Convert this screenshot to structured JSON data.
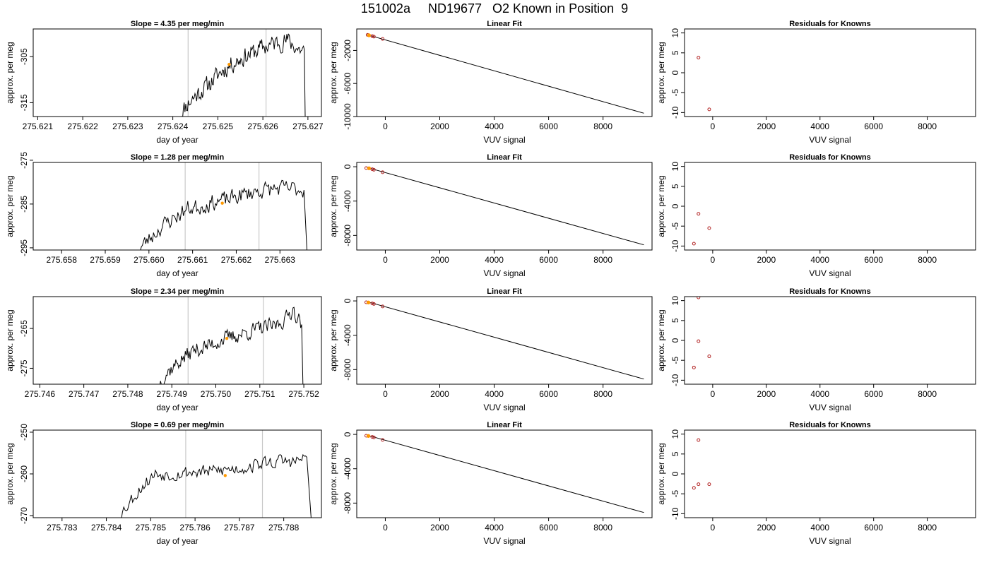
{
  "page_title": "151002a     ND19677   O2 Known in Position  9",
  "colors": {
    "line": "#000000",
    "vline": "#c8c8c8",
    "highlight": "#ff9900",
    "point": "#b22222"
  },
  "chart_data": [
    {
      "row": 1,
      "trace": {
        "type": "line",
        "title": "Slope =  4.35  per meg/min",
        "xlabel": "day of year",
        "ylabel": "approx. per meg",
        "xlim": [
          275.6209,
          275.6273
        ],
        "ylim": [
          -318,
          -299
        ],
        "xticks": [
          275.621,
          275.622,
          275.623,
          275.624,
          275.625,
          275.626,
          275.627
        ],
        "xtick_labels": [
          "275.621",
          "275.622",
          "275.623",
          "275.624",
          "275.625",
          "275.626",
          "275.627"
        ],
        "yticks": [
          -305,
          -315
        ],
        "ytick_labels": [
          "-305",
          "-315"
        ],
        "vlines": [
          275.62434,
          275.62607
        ],
        "highlight": [
          275.62525,
          -306.7
        ],
        "start": 275.62414,
        "end": 275.62692,
        "anchors": [
          [
            275.62414,
            -318
          ],
          [
            275.6243,
            -315.5
          ],
          [
            275.6245,
            -313.5
          ],
          [
            275.6248,
            -311
          ],
          [
            275.6251,
            -308
          ],
          [
            275.6254,
            -306
          ],
          [
            275.6257,
            -304.5
          ],
          [
            275.626,
            -303
          ],
          [
            275.6263,
            -302
          ],
          [
            275.62655,
            -301.5
          ],
          [
            275.6268,
            -303.5
          ],
          [
            275.62692,
            -303.5
          ]
        ],
        "noise": 1.8,
        "seed": 11,
        "drop": [
          275.62694,
          -318
        ]
      },
      "fit": {
        "type": "scatter",
        "title": "Linear Fit",
        "xlabel": "VUV signal",
        "ylabel": "approx. per meg",
        "xlim": [
          -1050,
          9800
        ],
        "ylim": [
          -10000,
          600
        ],
        "xticks": [
          0,
          2000,
          4000,
          6000,
          8000
        ],
        "xtick_labels": [
          "0",
          "2000",
          "4000",
          "6000",
          "8000"
        ],
        "yticks": [
          -2000,
          -6000,
          -10000
        ],
        "ytick_labels": [
          "-2000",
          "-6000",
          "-10000"
        ],
        "line": [
          [
            -680,
            -90
          ],
          [
            9500,
            -9600
          ]
        ],
        "points": [
          [
            -650,
            -120
          ],
          [
            -480,
            -270
          ],
          [
            -420,
            -330
          ],
          [
            -100,
            -610
          ]
        ],
        "highlight": [
          -600,
          -170
        ]
      },
      "residuals": {
        "type": "scatter",
        "title": "Residuals for Knowns",
        "xlabel": "VUV signal",
        "ylabel": "approx. per meg",
        "xlim": [
          -1050,
          9800
        ],
        "ylim": [
          -11,
          11
        ],
        "xticks": [
          0,
          2000,
          4000,
          6000,
          8000
        ],
        "xtick_labels": [
          "0",
          "2000",
          "4000",
          "6000",
          "8000"
        ],
        "yticks": [
          10,
          5,
          0,
          -5,
          -10
        ],
        "ytick_labels": [
          "10",
          "5",
          "0",
          "-5",
          "-10"
        ],
        "points": [
          [
            -530,
            3.8
          ],
          [
            -130,
            -9.2
          ]
        ]
      }
    },
    {
      "row": 2,
      "trace": {
        "type": "line",
        "title": "Slope =  1.28  per meg/min",
        "xlabel": "day of year",
        "ylabel": "approx. per meg",
        "xlim": [
          275.65735,
          275.66395
        ],
        "ylim": [
          -295.5,
          -275.5
        ],
        "xticks": [
          275.658,
          275.659,
          275.66,
          275.661,
          275.662,
          275.663
        ],
        "xtick_labels": [
          "275.658",
          "275.659",
          "275.660",
          "275.661",
          "275.662",
          "275.663"
        ],
        "yticks": [
          -275,
          -285,
          -295
        ],
        "ytick_labels": [
          "-275",
          "-285",
          "-295"
        ],
        "vlines": [
          275.66083,
          275.66252
        ],
        "highlight": [
          275.66168,
          -284.8
        ],
        "start": 275.65975,
        "end": 275.66355,
        "anchors": [
          [
            275.65975,
            -295.5
          ],
          [
            275.66,
            -293
          ],
          [
            275.6603,
            -290
          ],
          [
            275.6606,
            -288
          ],
          [
            275.6609,
            -286
          ],
          [
            275.6612,
            -285.5
          ],
          [
            275.6615,
            -284.5
          ],
          [
            275.6618,
            -284
          ],
          [
            275.6621,
            -283
          ],
          [
            275.6625,
            -282
          ],
          [
            275.6629,
            -281.5
          ],
          [
            275.6633,
            -281.5
          ],
          [
            275.66355,
            -281.8
          ]
        ],
        "noise": 1.7,
        "seed": 23,
        "drop": [
          275.66362,
          -296
        ]
      },
      "fit": {
        "type": "scatter",
        "title": "Linear Fit",
        "xlabel": "VUV signal",
        "ylabel": "approx. per meg",
        "xlim": [
          -1050,
          9800
        ],
        "ylim": [
          -9700,
          500
        ],
        "xticks": [
          0,
          2000,
          4000,
          6000,
          8000
        ],
        "xtick_labels": [
          "0",
          "2000",
          "4000",
          "6000",
          "8000"
        ],
        "yticks": [
          0,
          -4000,
          -8000
        ],
        "ytick_labels": [
          "0",
          "-4000",
          "-8000"
        ],
        "line": [
          [
            -680,
            -80
          ],
          [
            9500,
            -9100
          ]
        ],
        "points": [
          [
            -700,
            -160
          ],
          [
            -480,
            -290
          ],
          [
            -420,
            -350
          ],
          [
            -100,
            -640
          ]
        ],
        "highlight": [
          -600,
          -180
        ]
      },
      "residuals": {
        "type": "scatter",
        "title": "Residuals for Knowns",
        "xlabel": "VUV signal",
        "ylabel": "approx. per meg",
        "xlim": [
          -1050,
          9800
        ],
        "ylim": [
          -11,
          11
        ],
        "xticks": [
          0,
          2000,
          4000,
          6000,
          8000
        ],
        "xtick_labels": [
          "0",
          "2000",
          "4000",
          "6000",
          "8000"
        ],
        "yticks": [
          10,
          5,
          0,
          -5,
          -10
        ],
        "ytick_labels": [
          "10",
          "5",
          "0",
          "-5",
          "-10"
        ],
        "points": [
          [
            -700,
            -9.4
          ],
          [
            -530,
            -1.9
          ],
          [
            -130,
            -5.5
          ]
        ]
      }
    },
    {
      "row": 3,
      "trace": {
        "type": "line",
        "title": "Slope =  2.34  per meg/min",
        "xlabel": "day of year",
        "ylabel": "approx. per meg",
        "xlim": [
          275.74585,
          275.7524
        ],
        "ylim": [
          -279,
          -257
        ],
        "xticks": [
          275.746,
          275.747,
          275.748,
          275.749,
          275.75,
          275.751,
          275.752
        ],
        "xtick_labels": [
          "275.746",
          "275.747",
          "275.748",
          "275.749",
          "275.750",
          "275.751",
          "275.752"
        ],
        "yticks": [
          -265,
          -275
        ],
        "ytick_labels": [
          "-265",
          "-275"
        ],
        "vlines": [
          275.74937,
          275.75108
        ],
        "highlight": [
          275.75025,
          -267.5
        ],
        "start": 275.7487,
        "end": 275.75195,
        "anchors": [
          [
            275.7487,
            -279
          ],
          [
            275.7489,
            -276
          ],
          [
            275.7492,
            -273
          ],
          [
            275.7495,
            -270.5
          ],
          [
            275.7498,
            -269.5
          ],
          [
            275.7501,
            -268
          ],
          [
            275.7504,
            -267
          ],
          [
            275.7507,
            -266
          ],
          [
            275.751,
            -265
          ],
          [
            275.7513,
            -264.5
          ],
          [
            275.7516,
            -262.5
          ],
          [
            275.75175,
            -260
          ],
          [
            275.75195,
            -264
          ]
        ],
        "noise": 1.8,
        "seed": 37,
        "drop": [
          275.75198,
          -279
        ]
      },
      "fit": {
        "type": "scatter",
        "title": "Linear Fit",
        "xlabel": "VUV signal",
        "ylabel": "approx. per meg",
        "xlim": [
          -1050,
          9800
        ],
        "ylim": [
          -9700,
          500
        ],
        "xticks": [
          0,
          2000,
          4000,
          6000,
          8000
        ],
        "xtick_labels": [
          "0",
          "2000",
          "4000",
          "6000",
          "8000"
        ],
        "yticks": [
          0,
          -4000,
          -8000
        ],
        "ytick_labels": [
          "0",
          "-4000",
          "-8000"
        ],
        "line": [
          [
            -680,
            -80
          ],
          [
            9500,
            -9100
          ]
        ],
        "points": [
          [
            -700,
            -160
          ],
          [
            -480,
            -290
          ],
          [
            -420,
            -350
          ],
          [
            -100,
            -640
          ]
        ],
        "highlight": [
          -620,
          -180
        ]
      },
      "residuals": {
        "type": "scatter",
        "title": "Residuals for Knowns",
        "xlabel": "VUV signal",
        "ylabel": "approx. per meg",
        "xlim": [
          -1050,
          9800
        ],
        "ylim": [
          -11,
          11
        ],
        "xticks": [
          0,
          2000,
          4000,
          6000,
          8000
        ],
        "xtick_labels": [
          "0",
          "2000",
          "4000",
          "6000",
          "8000"
        ],
        "yticks": [
          10,
          5,
          0,
          -5,
          -10
        ],
        "ytick_labels": [
          "10",
          "5",
          "0",
          "-5",
          "-10"
        ],
        "points": [
          [
            -700,
            -6.8
          ],
          [
            -530,
            10.8
          ],
          [
            -530,
            -0.2
          ],
          [
            -130,
            -4.0
          ]
        ]
      }
    },
    {
      "row": 4,
      "trace": {
        "type": "line",
        "title": "Slope =  0.69  per meg/min",
        "xlabel": "day of year",
        "ylabel": "approx. per meg",
        "xlim": [
          275.78235,
          275.78885
        ],
        "ylim": [
          -270.5,
          -249.5
        ],
        "xticks": [
          275.783,
          275.784,
          275.785,
          275.786,
          275.787,
          275.788
        ],
        "xtick_labels": [
          "275.783",
          "275.784",
          "275.785",
          "275.786",
          "275.787",
          "275.788"
        ],
        "yticks": [
          -250,
          -260,
          -270
        ],
        "ytick_labels": [
          "-250",
          "-260",
          "-270"
        ],
        "vlines": [
          275.78579,
          275.78752
        ],
        "highlight": [
          275.78668,
          -260.4
        ],
        "start": 275.78425,
        "end": 275.78852,
        "anchors": [
          [
            275.78425,
            -270.5
          ],
          [
            275.7845,
            -267
          ],
          [
            275.7848,
            -263
          ],
          [
            275.7851,
            -260
          ],
          [
            275.7855,
            -260
          ],
          [
            275.7859,
            -259.5
          ],
          [
            275.7863,
            -259.5
          ],
          [
            275.7867,
            -259
          ],
          [
            275.7871,
            -258.5
          ],
          [
            275.7875,
            -257.5
          ],
          [
            275.7879,
            -257
          ],
          [
            275.7883,
            -257
          ],
          [
            275.78852,
            -256
          ]
        ],
        "noise": 1.5,
        "seed": 53,
        "drop": [
          275.78862,
          -271
        ]
      },
      "fit": {
        "type": "scatter",
        "title": "Linear Fit",
        "xlabel": "VUV signal",
        "ylabel": "approx. per meg",
        "xlim": [
          -1050,
          9800
        ],
        "ylim": [
          -9700,
          500
        ],
        "xticks": [
          0,
          2000,
          4000,
          6000,
          8000
        ],
        "xtick_labels": [
          "0",
          "2000",
          "4000",
          "6000",
          "8000"
        ],
        "yticks": [
          0,
          -4000,
          -8000
        ],
        "ytick_labels": [
          "0",
          "-4000",
          "-8000"
        ],
        "line": [
          [
            -680,
            -80
          ],
          [
            9500,
            -9100
          ]
        ],
        "points": [
          [
            -700,
            -160
          ],
          [
            -480,
            -290
          ],
          [
            -420,
            -350
          ],
          [
            -100,
            -640
          ]
        ],
        "highlight": [
          -620,
          -180
        ]
      },
      "residuals": {
        "type": "scatter",
        "title": "Residuals for Knowns",
        "xlabel": "VUV signal",
        "ylabel": "approx. per meg",
        "xlim": [
          -1050,
          9800
        ],
        "ylim": [
          -11,
          11
        ],
        "xticks": [
          0,
          2000,
          4000,
          6000,
          8000
        ],
        "xtick_labels": [
          "0",
          "2000",
          "4000",
          "6000",
          "8000"
        ],
        "yticks": [
          10,
          5,
          0,
          -5,
          -10
        ],
        "ytick_labels": [
          "10",
          "5",
          "0",
          "-5",
          "-10"
        ],
        "points": [
          [
            -700,
            -3.5
          ],
          [
            -530,
            -2.6
          ],
          [
            -530,
            8.5
          ],
          [
            -130,
            -2.6
          ]
        ]
      }
    }
  ]
}
